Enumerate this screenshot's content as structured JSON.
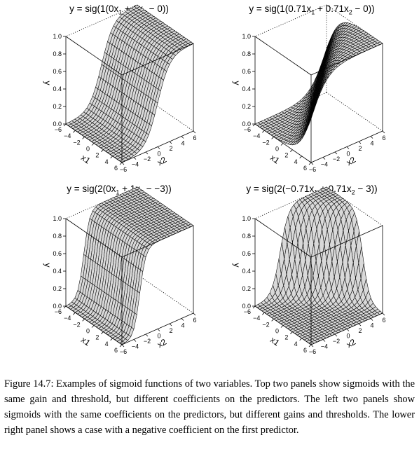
{
  "panels": [
    {
      "title": {
        "pre": "y = sig(1(0x",
        "s1": "1",
        "mid": " + 1x",
        "s2": "2",
        "post": " − 0))"
      },
      "gain": 1,
      "w1": 0,
      "w2": 1,
      "threshold": 0,
      "axes": {
        "x_label": "x1",
        "y_label": "x2",
        "z_label": "y",
        "x_ticks": [
          "−6",
          "−4",
          "−2",
          "0",
          "2",
          "4",
          "6"
        ],
        "y_ticks": [
          "−6",
          "−4",
          "−2",
          "0",
          "2",
          "4",
          "6"
        ],
        "z_ticks": [
          "0.0",
          "0.2",
          "0.4",
          "0.6",
          "0.8",
          "1.0"
        ]
      }
    },
    {
      "title": {
        "pre": "y = sig(1(0.71x",
        "s1": "1",
        "mid": " + 0.71x",
        "s2": "2",
        "post": " − 0))"
      },
      "gain": 1,
      "w1": 0.71,
      "w2": 0.71,
      "threshold": 0,
      "axes": {
        "x_label": "x1",
        "y_label": "x2",
        "z_label": "y",
        "x_ticks": [
          "−6",
          "−4",
          "−2",
          "0",
          "2",
          "4",
          "6"
        ],
        "y_ticks": [
          "−6",
          "−4",
          "−2",
          "0",
          "2",
          "4",
          "6"
        ],
        "z_ticks": [
          "0.0",
          "0.2",
          "0.4",
          "0.6",
          "0.8",
          "1.0"
        ]
      }
    },
    {
      "title": {
        "pre": "y = sig(2(0x",
        "s1": "1",
        "mid": " + 1x",
        "s2": "2",
        "post": " − −3))"
      },
      "gain": 2,
      "w1": 0,
      "w2": 1,
      "threshold": -3,
      "axes": {
        "x_label": "x1",
        "y_label": "x2",
        "z_label": "y",
        "x_ticks": [
          "−6",
          "−4",
          "−2",
          "0",
          "2",
          "4",
          "6"
        ],
        "y_ticks": [
          "−6",
          "−4",
          "−2",
          "0",
          "2",
          "4",
          "6"
        ],
        "z_ticks": [
          "0.0",
          "0.2",
          "0.4",
          "0.6",
          "0.8",
          "1.0"
        ]
      }
    },
    {
      "title": {
        "pre": "y = sig(2(−0.71x",
        "s1": "1",
        "mid": " + 0.71x",
        "s2": "2",
        "post": " − 3))"
      },
      "gain": 2,
      "w1": -0.71,
      "w2": 0.71,
      "threshold": 3,
      "axes": {
        "x_label": "x1",
        "y_label": "x2",
        "z_label": "y",
        "x_ticks": [
          "−6",
          "−4",
          "−2",
          "0",
          "2",
          "4",
          "6"
        ],
        "y_ticks": [
          "−6",
          "−4",
          "−2",
          "0",
          "2",
          "4",
          "6"
        ],
        "z_ticks": [
          "0.0",
          "0.2",
          "0.4",
          "0.6",
          "0.8",
          "1.0"
        ]
      }
    }
  ],
  "caption": "Figure 14.7: Examples of sigmoid functions of two variables. Top two panels show sigmoids with the same gain and threshold, but different coefficients on the predictors. The left two panels show sigmoids with the same coefficients on the predictors, but different gains and thresholds. The lower right panel shows a case with a negative coefficient on the first predictor."
}
